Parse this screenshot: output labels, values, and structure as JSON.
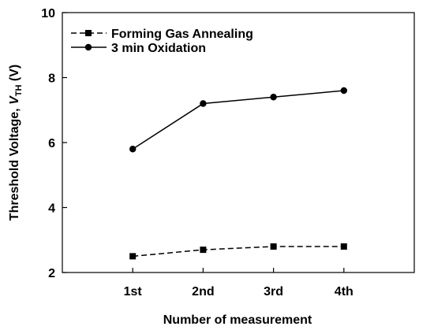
{
  "chart_data": {
    "type": "line",
    "categories": [
      "1st",
      "2nd",
      "3rd",
      "4th"
    ],
    "xlim": [
      0,
      5
    ],
    "ylim": [
      2,
      10
    ],
    "yticks": [
      2,
      4,
      6,
      8,
      10
    ],
    "xlabel": "Number of measurement",
    "ylabel": {
      "main": "Threshold Voltage, ",
      "symbol": "V",
      "subscript": "TH",
      "unit": " (V)"
    },
    "grid": false,
    "legend_position": "top-left",
    "series": [
      {
        "name": "Forming Gas Annealing",
        "values": [
          2.5,
          2.7,
          2.8,
          2.8
        ],
        "marker": "square",
        "line_style": "dashed",
        "color": "#000000"
      },
      {
        "name": "3 min Oxidation",
        "values": [
          5.8,
          7.2,
          7.4,
          7.6
        ],
        "marker": "circle",
        "line_style": "solid",
        "color": "#000000"
      }
    ]
  }
}
